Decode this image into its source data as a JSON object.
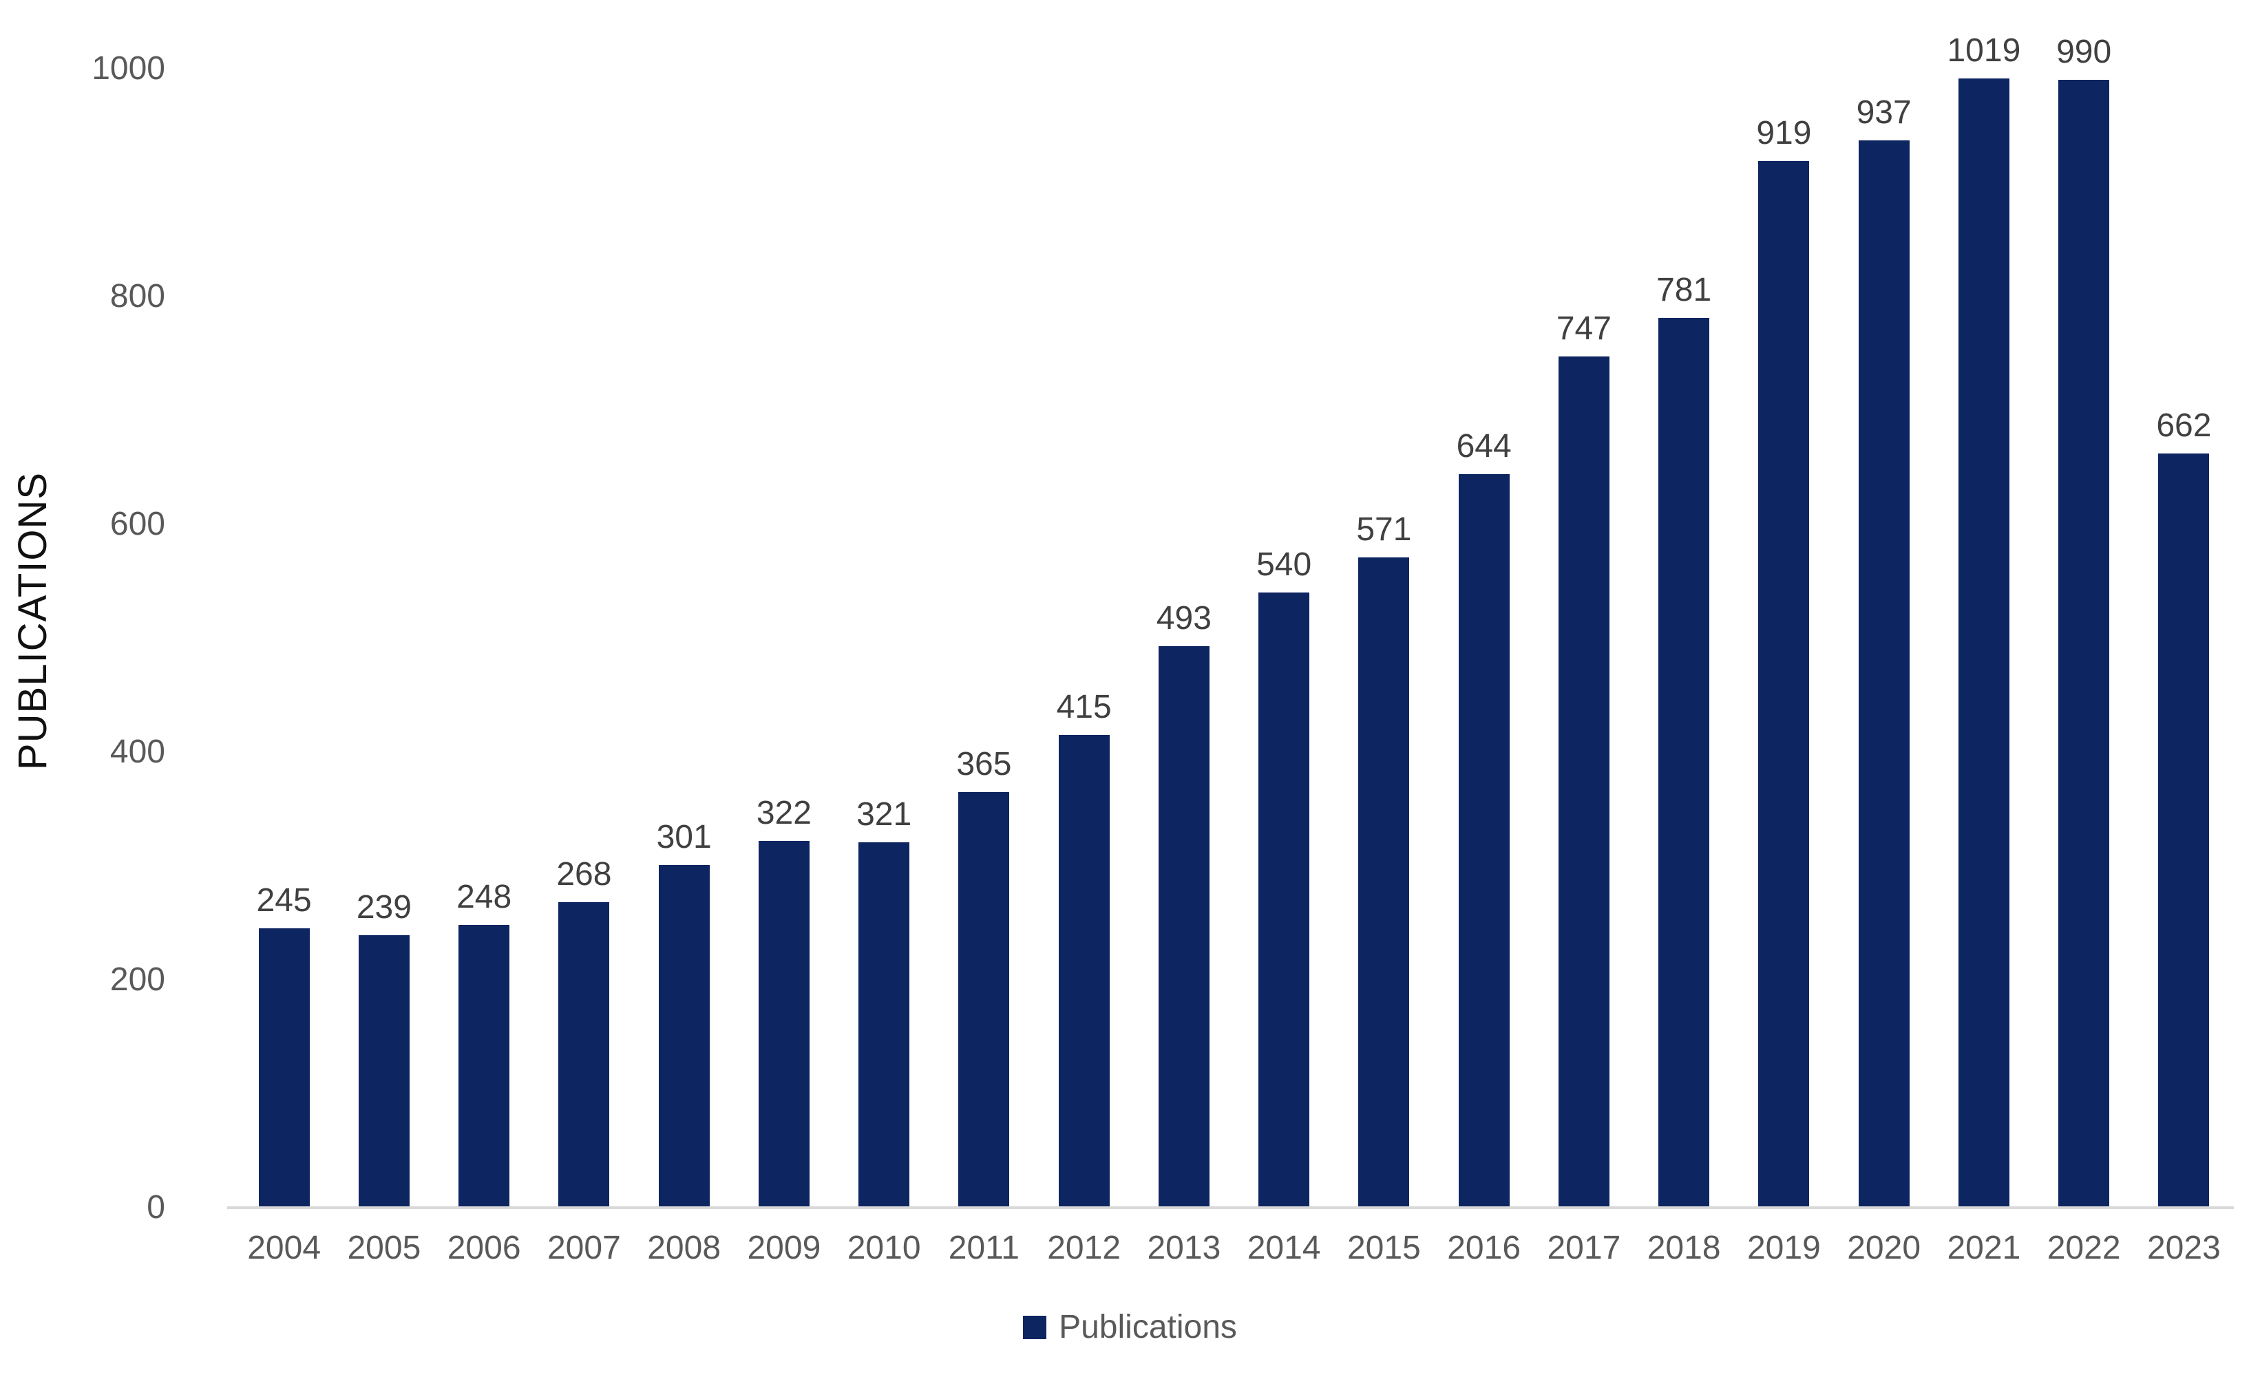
{
  "chart_data": {
    "type": "bar",
    "categories": [
      "2004",
      "2005",
      "2006",
      "2007",
      "2008",
      "2009",
      "2010",
      "2011",
      "2012",
      "2013",
      "2014",
      "2015",
      "2016",
      "2017",
      "2018",
      "2019",
      "2020",
      "2021",
      "2022",
      "2023"
    ],
    "series": [
      {
        "name": "Publications",
        "values": [
          245,
          239,
          248,
          268,
          301,
          322,
          321,
          365,
          415,
          493,
          540,
          571,
          644,
          747,
          781,
          919,
          937,
          1019,
          990,
          662
        ]
      }
    ],
    "title": "",
    "xlabel": "",
    "ylabel": "PUBLICATIONS",
    "ylim": [
      0,
      1030
    ],
    "y_ticks": [
      0,
      200,
      400,
      600,
      800,
      1000
    ],
    "grid": false,
    "legend_position": "bottom",
    "data_labels": true
  },
  "legend": {
    "label": "Publications"
  },
  "colors": {
    "bar": "#0d2561",
    "data_label": "#404040",
    "axis_text": "#595959",
    "axis_title": "#111111",
    "axis_line": "#d9d9d9",
    "background": "#ffffff"
  }
}
